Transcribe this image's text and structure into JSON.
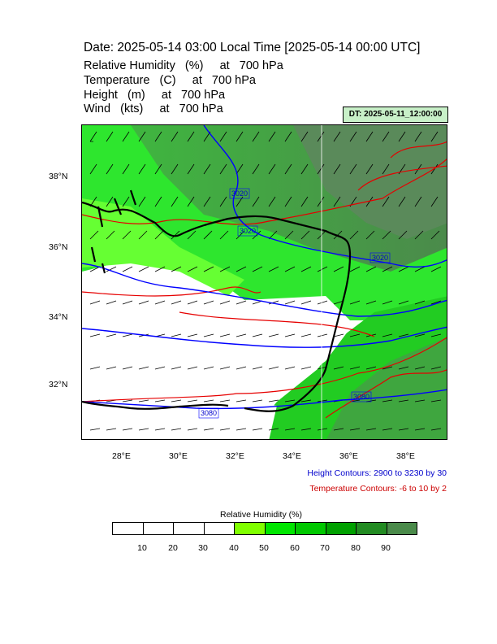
{
  "title": "Date: 2025-05-14  03:00 Local Time [2025-05-14  00:00 UTC]",
  "variables": [
    "Relative Humidity   (%)     at   700 hPa",
    "Temperature   (C)     at   700 hPa",
    "Height   (m)     at   700 hPa",
    "Wind   (kts)     at   700 hPa"
  ],
  "dt_label": "DT: 2025-05-11_12:00:00",
  "map": {
    "lon_labels": [
      "28°E",
      "30°E",
      "32°E",
      "34°E",
      "36°E",
      "38°E"
    ],
    "lat_labels": [
      "38°N",
      "36°N",
      "34°N",
      "32°N"
    ],
    "height_contour_labels": [
      "3020",
      "3020",
      "3020",
      "3080",
      "3080"
    ]
  },
  "legend": {
    "height": "Height Contours: 2900 to 3230 by 30",
    "temperature": "Temperature Contours: -6 to 10 by 2"
  },
  "colorbar": {
    "title": "Relative Humidity  (%)",
    "labels": [
      "10",
      "20",
      "30",
      "40",
      "50",
      "60",
      "70",
      "80",
      "90"
    ],
    "colors": [
      "#ffffff",
      "#ffffff",
      "#ffffff",
      "#ffffff",
      "#80ff00",
      "#00e600",
      "#00c800",
      "#00a000",
      "#228b22",
      "#4a8a4a"
    ]
  },
  "colors": {
    "height_contour": "#0000ff",
    "temperature_contour": "#e60000",
    "coastline": "#000000"
  }
}
